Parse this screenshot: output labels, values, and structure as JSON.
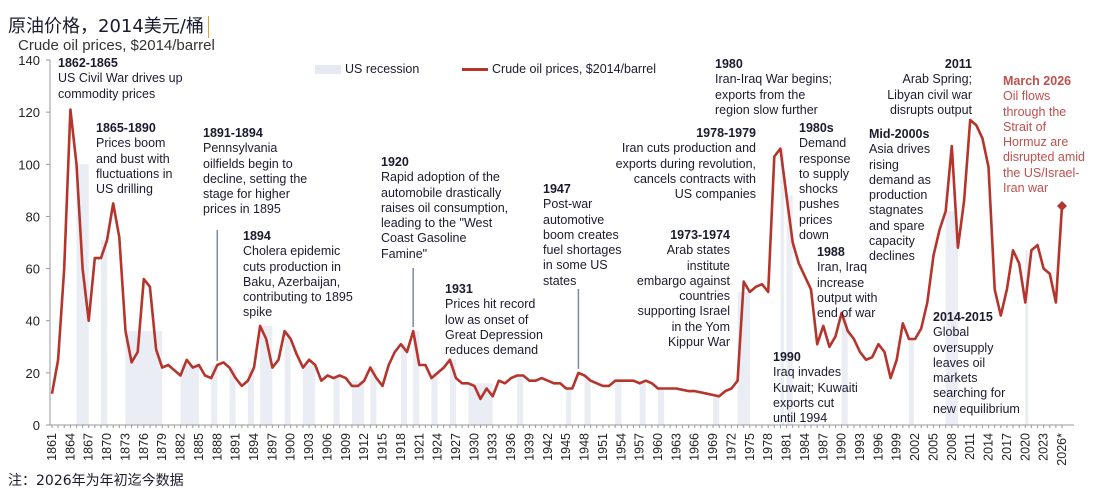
{
  "title": "原油价格，2014美元/桶",
  "underlying_title": "Crude oil prices, $2014/barrel",
  "footnote": "注：2026年为年初迄今数据",
  "colors": {
    "line": "#b5342c",
    "recession": "#e6e9f2",
    "highlight_text": "#c0504d",
    "axis": "#999999"
  },
  "legend": {
    "recession": "US recession",
    "line": "Crude oil prices, $2014/barrel"
  },
  "annotations": [
    {
      "id": "a1862",
      "head": "1862-1865",
      "body": "US Civil War drives up\ncommodity prices"
    },
    {
      "id": "a1865",
      "head": "1865-1890",
      "body": "Prices boom\nand bust with\nfluctuations in\nUS drilling"
    },
    {
      "id": "a1891",
      "head": "1891-1894",
      "body": "Pennsylvania\noilfields begin to\ndecline, setting the\nstage for higher\nprices in 1895"
    },
    {
      "id": "a1894",
      "head": "1894",
      "body": "Cholera epidemic\ncuts production in\nBaku, Azerbaijan,\ncontributing to 1895\nspike"
    },
    {
      "id": "a1920",
      "head": "1920",
      "body": "Rapid adoption of the\nautomobile drastically\nraises oil consumption,\nleading to the \"West\nCoast Gasoline\nFamine\""
    },
    {
      "id": "a1931",
      "head": "1931",
      "body": "Prices hit record\nlow as onset of\nGreat Depression\nreduces demand"
    },
    {
      "id": "a1947",
      "head": "1947",
      "body": "Post-war\nautomotive\nboom creates\nfuel shortages\nin some US\nstates"
    },
    {
      "id": "a1973",
      "head": "1973-1974",
      "body": "Arab states\ninstitute\nembargo against\ncountries\nsupporting Israel\nin the Yom\nKippur War"
    },
    {
      "id": "a1978",
      "head": "1978-1979",
      "body": "Iran cuts production and\nexports during revolution,\ncancels contracts with\nUS companies"
    },
    {
      "id": "a1980",
      "head": "1980",
      "body": "Iran-Iraq War begins;\nexports from the\nregion slow further"
    },
    {
      "id": "a1980s",
      "head": "1980s",
      "body": "Demand\nresponse\nto supply\nshocks\npushes\nprices\ndown"
    },
    {
      "id": "a1988",
      "head": "1988",
      "body": "Iran, Iraq\nincrease\noutput with\nend of war"
    },
    {
      "id": "a1990",
      "head": "1990",
      "body": "Iraq invades\nKuwait; Kuwaiti\nexports cut\nuntil 1994"
    },
    {
      "id": "a2000s",
      "head": "Mid-2000s",
      "body": "Asia drives\nrising\ndemand as\nproduction\nstagnates\nand spare\ncapacity\ndeclines"
    },
    {
      "id": "a2014",
      "head": "2014-2015",
      "body": "Global\noversupply\nleaves oil\nmarkets\nsearching for\nnew equilibrium"
    },
    {
      "id": "a2011",
      "head": "2011",
      "body": "Arab Spring;\nLibyan civil war\ndisrupts output"
    },
    {
      "id": "a2026",
      "head": "March 2026",
      "body": "Oil flows\nthrough the\nStrait of\nHormuz are\ndisrupted amid\nthe US/Israel-\nIran war"
    }
  ],
  "chart_data": {
    "type": "line",
    "title": "原油价格，2014美元/桶",
    "ylim": [
      0,
      140
    ],
    "yticks": [
      0,
      20,
      40,
      60,
      80,
      100,
      120,
      140
    ],
    "xlim": [
      1861,
      2026
    ],
    "xtick_labels": [
      "1861",
      "1864",
      "1867",
      "1870",
      "1873",
      "1876",
      "1879",
      "1882",
      "1885",
      "1888",
      "1891",
      "1894",
      "1897",
      "1900",
      "1903",
      "1906",
      "1909",
      "1912",
      "1915",
      "1918",
      "1921",
      "1924",
      "1927",
      "1930",
      "1933",
      "1936",
      "1939",
      "1942",
      "1945",
      "1948",
      "1951",
      "1954",
      "1957",
      "1960",
      "1963",
      "1966",
      "1969",
      "1972",
      "1975",
      "1978",
      "1981",
      "1984",
      "1987",
      "1990",
      "1993",
      "1996",
      "1999",
      "2002",
      "2005",
      "2008",
      "2011",
      "2014",
      "2017",
      "2020",
      "2023",
      "2026*"
    ],
    "grid": false,
    "legend_position": "top",
    "series": [
      {
        "name": "Crude oil prices, $2014/barrel",
        "x_start": 1861,
        "values": [
          12,
          25,
          60,
          121,
          100,
          60,
          40,
          64,
          64,
          71,
          85,
          72,
          36,
          24,
          28,
          56,
          53,
          29,
          22,
          23,
          21,
          19,
          25,
          22,
          23,
          19,
          18,
          23,
          24,
          22,
          18,
          15,
          17,
          22,
          38,
          33,
          22,
          25,
          36,
          33,
          27,
          22,
          25,
          23,
          17,
          19,
          18,
          19,
          18,
          15,
          15,
          17,
          22,
          18,
          15,
          23,
          28,
          31,
          28,
          36,
          23,
          23,
          18,
          20,
          22,
          25,
          18,
          16,
          16,
          15,
          10,
          14,
          11,
          17,
          16,
          18,
          19,
          19,
          17,
          17,
          18,
          17,
          16,
          16,
          14,
          14,
          20,
          19,
          17,
          16,
          15,
          15,
          17,
          17,
          17,
          17,
          16,
          17,
          16,
          14,
          14,
          14,
          14,
          13.5,
          13,
          13,
          12.5,
          12,
          11.5,
          11,
          13,
          14,
          17,
          55,
          51,
          53,
          54,
          51,
          103,
          106,
          88,
          70,
          62,
          57,
          52,
          31,
          38,
          30,
          34,
          43,
          36,
          33,
          28,
          25,
          26,
          31,
          28,
          18,
          25,
          39,
          33,
          33,
          37,
          47,
          65,
          75,
          82,
          107,
          68,
          86,
          117,
          115,
          110,
          99,
          52,
          42,
          52,
          67,
          62,
          47,
          67,
          69,
          60,
          58,
          47,
          84
        ]
      }
    ],
    "recessions": [
      [
        1865,
        1867
      ],
      [
        1869,
        1870
      ],
      [
        1873,
        1879
      ],
      [
        1882,
        1885
      ],
      [
        1887,
        1888
      ],
      [
        1890,
        1891
      ],
      [
        1893,
        1894
      ],
      [
        1895,
        1897
      ],
      [
        1899,
        1900
      ],
      [
        1902,
        1904
      ],
      [
        1907,
        1908
      ],
      [
        1910,
        1912
      ],
      [
        1913,
        1914
      ],
      [
        1918,
        1919
      ],
      [
        1920,
        1921
      ],
      [
        1923,
        1924
      ],
      [
        1926,
        1927
      ],
      [
        1929,
        1933
      ],
      [
        1937,
        1938
      ],
      [
        1945,
        1945.8
      ],
      [
        1948,
        1949
      ],
      [
        1953,
        1954
      ],
      [
        1957,
        1958
      ],
      [
        1960,
        1961
      ],
      [
        1969,
        1970
      ],
      [
        1973,
        1975
      ],
      [
        1980,
        1980.6
      ],
      [
        1981,
        1982
      ],
      [
        1990,
        1991
      ],
      [
        2001,
        2001.8
      ],
      [
        2007,
        2009
      ],
      [
        2020,
        2020.5
      ]
    ],
    "marker_lines": [
      1888,
      1920,
      1947
    ],
    "endpoint_marker": {
      "year": 2026,
      "value": 84,
      "shape": "diamond"
    }
  }
}
